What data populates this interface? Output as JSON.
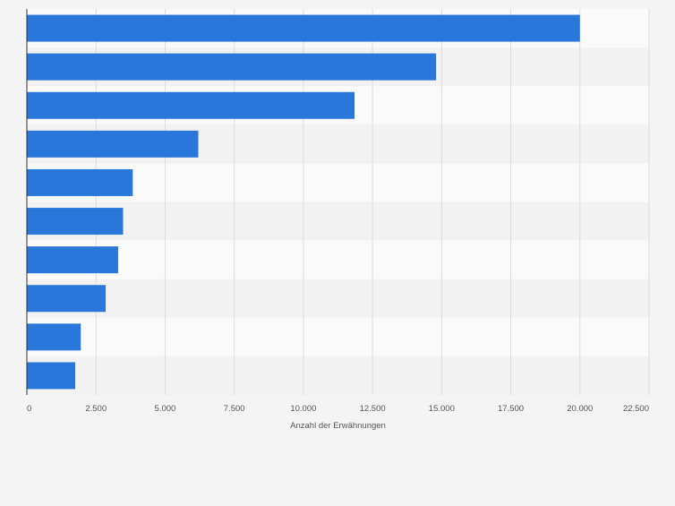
{
  "chart_data": {
    "type": "bar",
    "orientation": "horizontal",
    "title": "",
    "xlabel": "Anzahl der Erwähnungen",
    "ylabel": "",
    "categories": [
      "",
      "",
      "",
      "",
      "",
      "",
      "",
      "",
      "",
      ""
    ],
    "values": [
      20000,
      14800,
      11850,
      6200,
      3830,
      3480,
      3300,
      2850,
      1950,
      1750
    ],
    "xlim": [
      0,
      22500
    ],
    "x_ticks": [
      0,
      2500,
      5000,
      7500,
      10000,
      12500,
      15000,
      17500,
      20000,
      22500
    ],
    "x_tick_labels": [
      "0",
      "2.500",
      "5.000",
      "7.500",
      "10.000",
      "12.500",
      "15.000",
      "17.500",
      "20.000",
      "22.500"
    ],
    "grid": true,
    "legend": "none",
    "colors": {
      "bar": "#2a77dc",
      "background": "#f4f4f4",
      "band_light": "#fafafa",
      "band_dark": "#f2f2f2",
      "grid": "#dcdcdc",
      "axis": "#333333",
      "tick_text": "#555555"
    }
  }
}
